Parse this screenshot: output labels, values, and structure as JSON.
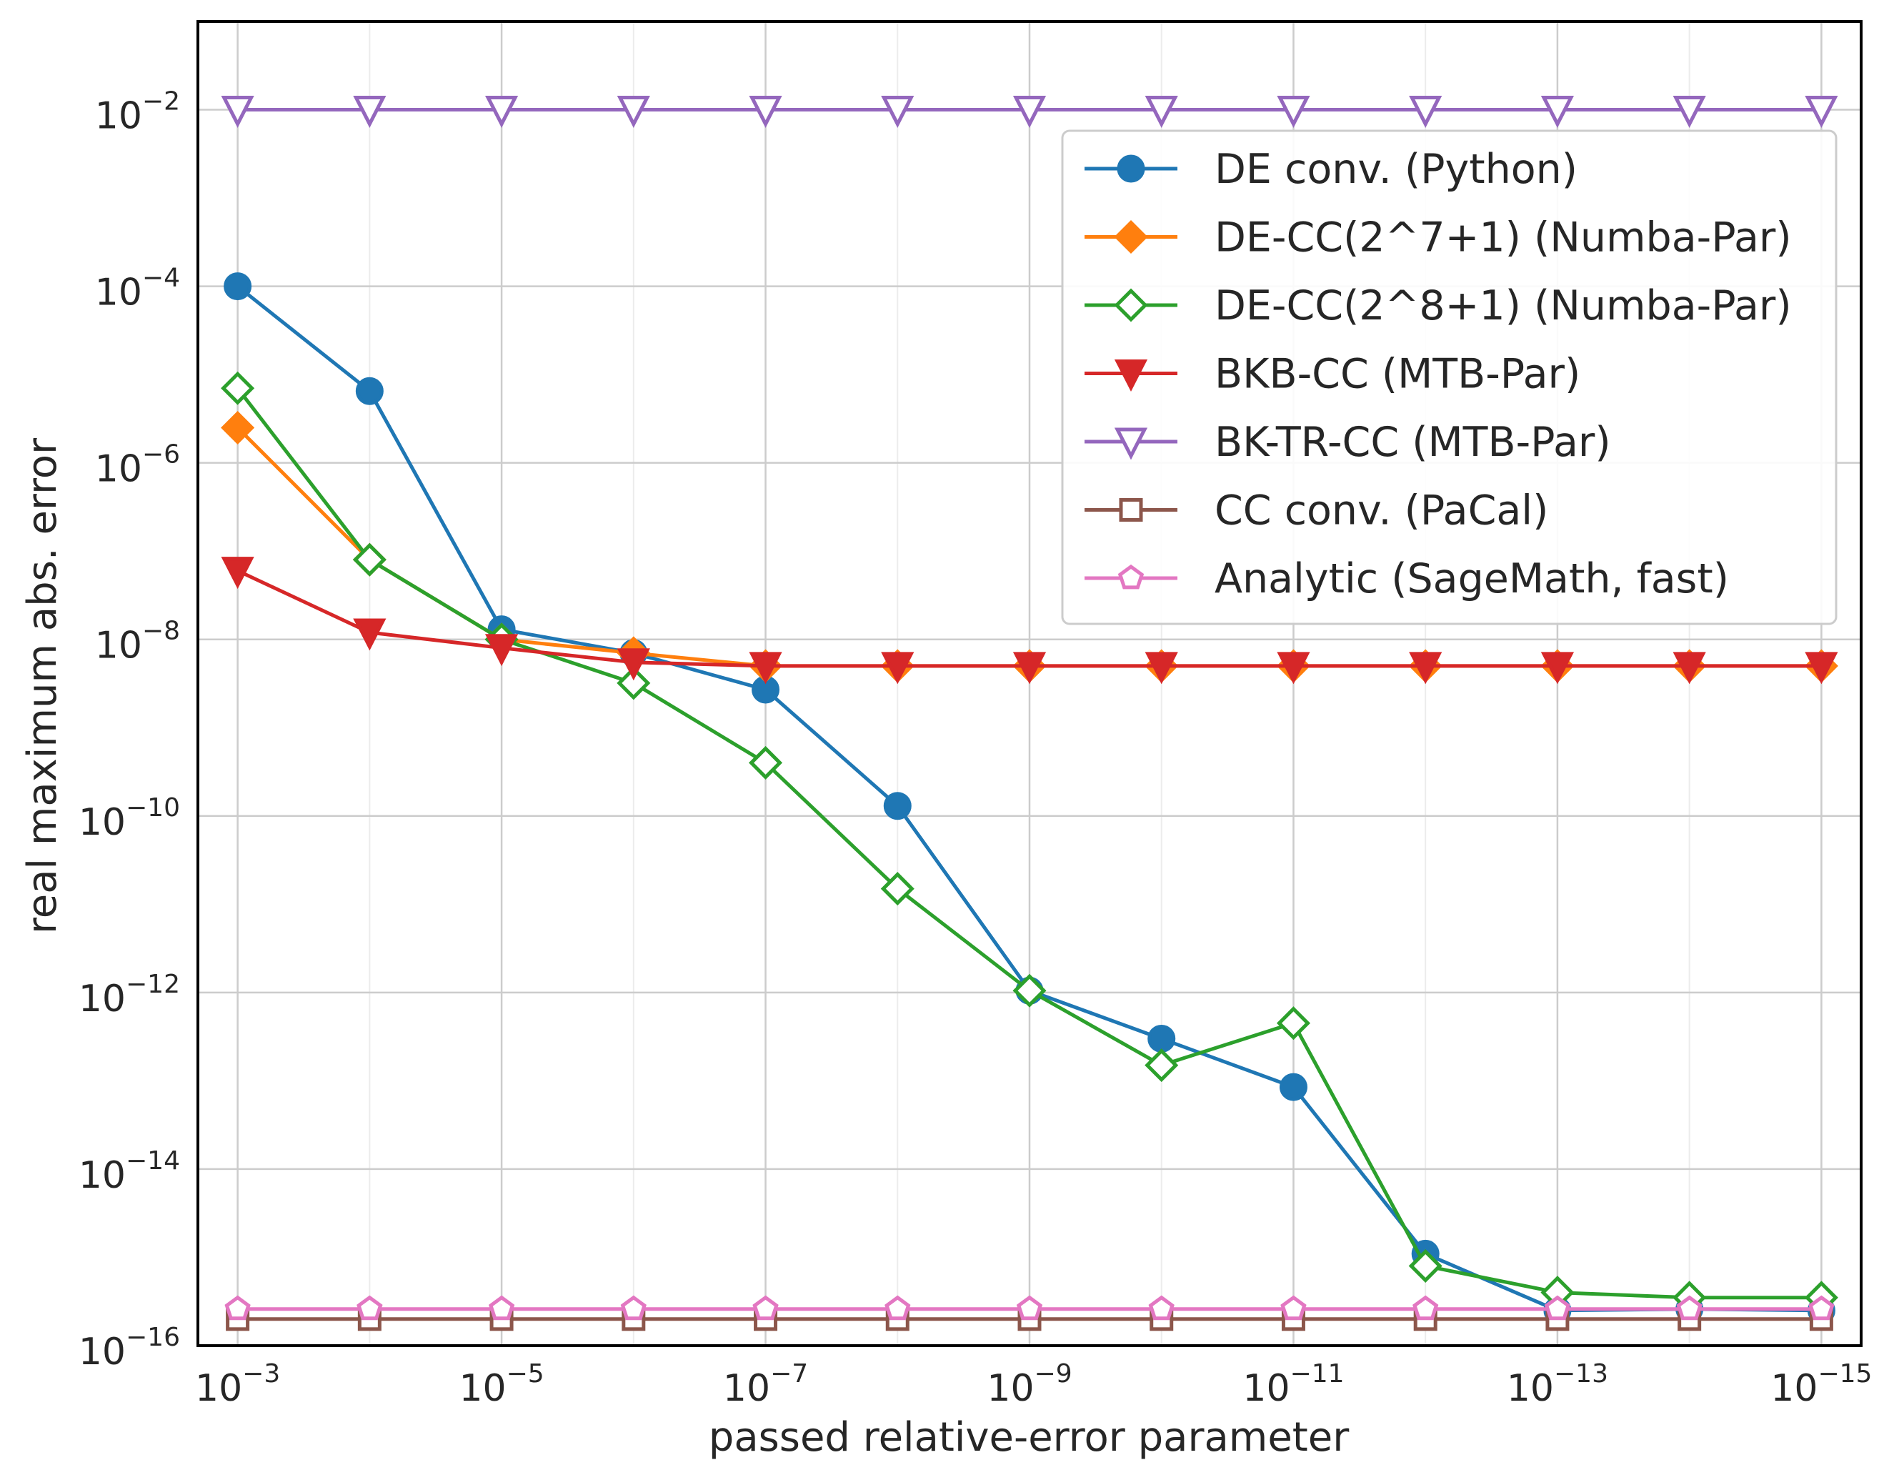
{
  "chart_data": {
    "type": "line",
    "xlabel": "passed relative-error parameter",
    "ylabel": "real maximum abs. error",
    "x_scale": "log",
    "y_scale": "log",
    "x_inverted": true,
    "grid": true,
    "legend_position": "upper-right",
    "x": [
      0.001,
      0.0001,
      1e-05,
      1e-06,
      1e-07,
      1e-08,
      1e-09,
      1e-10,
      1e-11,
      1e-12,
      1e-13,
      1e-14,
      1e-15
    ],
    "x_ticks": [
      {
        "base": "10",
        "exp": "−3",
        "value": 0.001
      },
      {
        "base": "10",
        "exp": "−5",
        "value": 1e-05
      },
      {
        "base": "10",
        "exp": "−7",
        "value": 1e-07
      },
      {
        "base": "10",
        "exp": "−9",
        "value": 1e-09
      },
      {
        "base": "10",
        "exp": "−11",
        "value": 1e-11
      },
      {
        "base": "10",
        "exp": "−13",
        "value": 1e-13
      },
      {
        "base": "10",
        "exp": "−15",
        "value": 1e-15
      }
    ],
    "y_ticks": [
      {
        "base": "10",
        "exp": "−2",
        "value": 0.01
      },
      {
        "base": "10",
        "exp": "−4",
        "value": 0.0001
      },
      {
        "base": "10",
        "exp": "−6",
        "value": 1e-06
      },
      {
        "base": "10",
        "exp": "−8",
        "value": 1e-08
      },
      {
        "base": "10",
        "exp": "−10",
        "value": 1e-10
      },
      {
        "base": "10",
        "exp": "−12",
        "value": 1e-12
      },
      {
        "base": "10",
        "exp": "−14",
        "value": 1e-14
      },
      {
        "base": "10",
        "exp": "−16",
        "value": 1e-16
      }
    ],
    "xlim": [
      0.002,
      5e-16
    ],
    "ylim": [
      1e-16,
      0.1
    ],
    "series": [
      {
        "name": "DE conv. (Python)",
        "color": "#1f77b4",
        "marker": "circle-filled",
        "values": [
          0.0001,
          6.5e-06,
          1.3e-08,
          7e-09,
          2.7e-09,
          1.3e-10,
          1.05e-12,
          3e-13,
          8.5e-14,
          1.1e-15,
          2.5e-16,
          2.6e-16,
          2.5e-16
        ]
      },
      {
        "name": "DE-CC(2^7+1) (Numba-Par)",
        "color": "#ff7f0e",
        "marker": "diamond-filled",
        "values": [
          2.5e-06,
          8e-08,
          1e-08,
          7e-09,
          5e-09,
          5e-09,
          5e-09,
          5e-09,
          5e-09,
          5e-09,
          5e-09,
          5e-09,
          5e-09
        ]
      },
      {
        "name": "DE-CC(2^8+1) (Numba-Par)",
        "color": "#2ca02c",
        "marker": "diamond-open",
        "values": [
          7e-06,
          8e-08,
          1e-08,
          3.2e-09,
          4e-10,
          1.5e-11,
          1.05e-12,
          1.5e-13,
          4.5e-13,
          8e-16,
          4e-16,
          3.5e-16,
          3.5e-16
        ]
      },
      {
        "name": "BKB-CC (MTB-Par)",
        "color": "#d62728",
        "marker": "triangle-down-filled",
        "values": [
          6e-08,
          1.2e-08,
          8e-09,
          5.5e-09,
          5e-09,
          5e-09,
          5e-09,
          5e-09,
          5e-09,
          5e-09,
          5e-09,
          5e-09,
          5e-09
        ]
      },
      {
        "name": "BK-TR-CC (MTB-Par)",
        "color": "#9467bd",
        "marker": "triangle-down-open",
        "values": [
          0.01,
          0.01,
          0.01,
          0.01,
          0.01,
          0.01,
          0.01,
          0.01,
          0.01,
          0.01,
          0.01,
          0.01,
          0.01
        ]
      },
      {
        "name": "CC conv. (PaCal)",
        "color": "#8c564b",
        "marker": "square-open",
        "values": [
          2e-16,
          2e-16,
          2e-16,
          2e-16,
          2e-16,
          2e-16,
          2e-16,
          2e-16,
          2e-16,
          2e-16,
          2e-16,
          2e-16,
          2e-16
        ]
      },
      {
        "name": "Analytic (SageMath, fast)",
        "color": "#e377c2",
        "marker": "pentagon-open",
        "values": [
          2.6e-16,
          2.6e-16,
          2.6e-16,
          2.6e-16,
          2.6e-16,
          2.6e-16,
          2.6e-16,
          2.6e-16,
          2.6e-16,
          2.6e-16,
          2.6e-16,
          2.6e-16,
          2.6e-16
        ]
      }
    ]
  }
}
